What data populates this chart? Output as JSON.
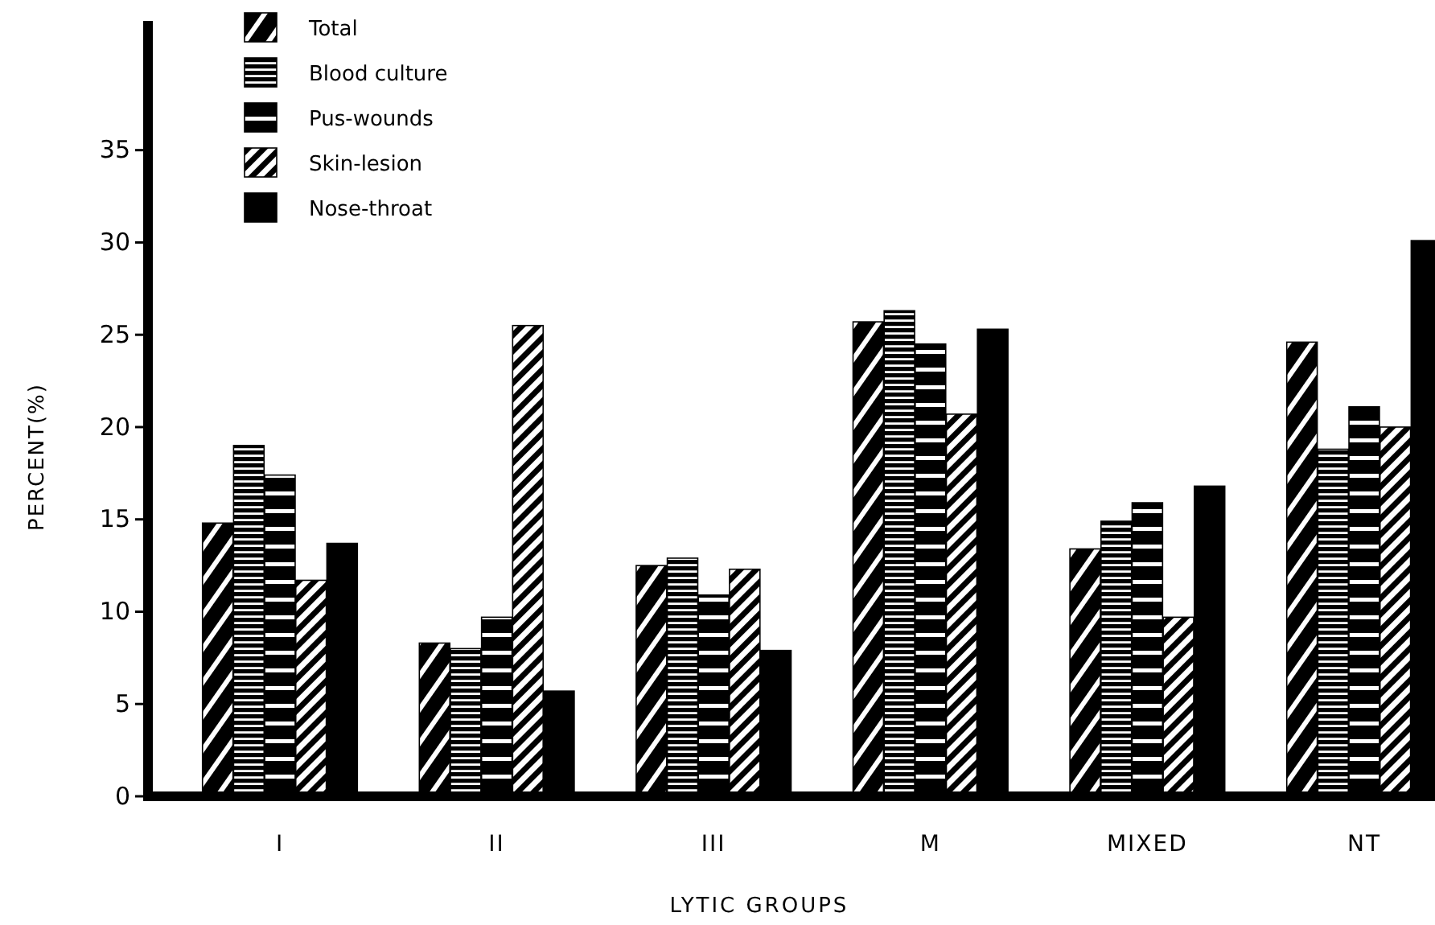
{
  "chart_data": {
    "type": "bar",
    "xlabel": "LYTIC GROUPS",
    "ylabel": "PERCENT(%)",
    "categories": [
      "I",
      "II",
      "III",
      "M",
      "MIXED",
      "NT"
    ],
    "series": [
      {
        "name": "Total",
        "color": "#000000",
        "values": [
          14.8,
          8.3,
          12.5,
          25.7,
          13.4,
          24.6
        ]
      },
      {
        "name": "Blood culture",
        "color": "#000000",
        "values": [
          19.0,
          8.0,
          12.9,
          26.3,
          14.9,
          18.8
        ]
      },
      {
        "name": "Pus-wounds",
        "color": "#000000",
        "values": [
          17.4,
          9.7,
          10.9,
          24.5,
          15.9,
          21.1
        ]
      },
      {
        "name": "Skin-lesion",
        "color": "#000000",
        "values": [
          11.7,
          25.5,
          12.3,
          20.7,
          9.7,
          20.0
        ]
      },
      {
        "name": "Nose-throat",
        "color": "#000000",
        "values": [
          13.7,
          5.7,
          7.9,
          25.3,
          16.8,
          30.1
        ]
      }
    ],
    "ylim": [
      0,
      42
    ],
    "yticks": [
      0,
      5,
      10,
      15,
      20,
      25,
      30,
      35
    ],
    "grid": false,
    "legend": "top left"
  }
}
